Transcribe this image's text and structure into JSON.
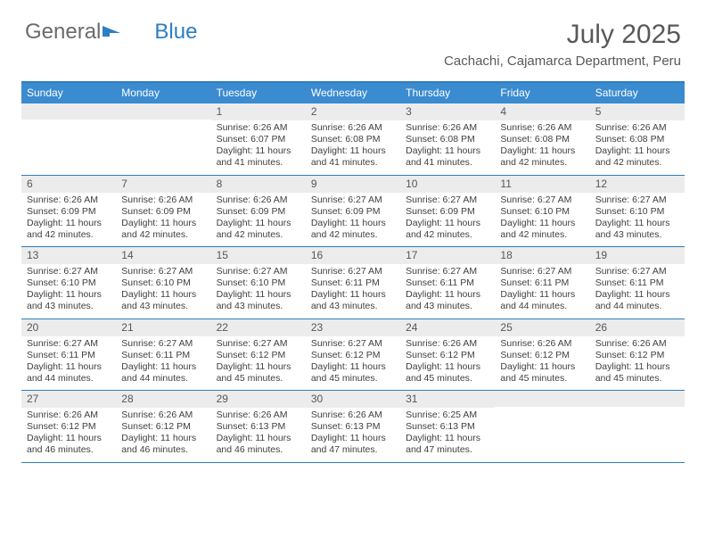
{
  "brand": {
    "part1": "General",
    "part2": "Blue"
  },
  "title": "July 2025",
  "location": "Cachachi, Cajamarca Department, Peru",
  "colors": {
    "header_bg": "#3a8bd0",
    "header_border": "#2f7dbd",
    "text": "#404040",
    "title_text": "#595959",
    "daybar_bg": "#ececec"
  },
  "day_labels": [
    "Sunday",
    "Monday",
    "Tuesday",
    "Wednesday",
    "Thursday",
    "Friday",
    "Saturday"
  ],
  "weeks": [
    [
      {
        "n": "",
        "sunrise": "",
        "sunset": "",
        "daylight": ""
      },
      {
        "n": "",
        "sunrise": "",
        "sunset": "",
        "daylight": ""
      },
      {
        "n": "1",
        "sunrise": "Sunrise: 6:26 AM",
        "sunset": "Sunset: 6:07 PM",
        "daylight": "Daylight: 11 hours and 41 minutes."
      },
      {
        "n": "2",
        "sunrise": "Sunrise: 6:26 AM",
        "sunset": "Sunset: 6:08 PM",
        "daylight": "Daylight: 11 hours and 41 minutes."
      },
      {
        "n": "3",
        "sunrise": "Sunrise: 6:26 AM",
        "sunset": "Sunset: 6:08 PM",
        "daylight": "Daylight: 11 hours and 41 minutes."
      },
      {
        "n": "4",
        "sunrise": "Sunrise: 6:26 AM",
        "sunset": "Sunset: 6:08 PM",
        "daylight": "Daylight: 11 hours and 42 minutes."
      },
      {
        "n": "5",
        "sunrise": "Sunrise: 6:26 AM",
        "sunset": "Sunset: 6:08 PM",
        "daylight": "Daylight: 11 hours and 42 minutes."
      }
    ],
    [
      {
        "n": "6",
        "sunrise": "Sunrise: 6:26 AM",
        "sunset": "Sunset: 6:09 PM",
        "daylight": "Daylight: 11 hours and 42 minutes."
      },
      {
        "n": "7",
        "sunrise": "Sunrise: 6:26 AM",
        "sunset": "Sunset: 6:09 PM",
        "daylight": "Daylight: 11 hours and 42 minutes."
      },
      {
        "n": "8",
        "sunrise": "Sunrise: 6:26 AM",
        "sunset": "Sunset: 6:09 PM",
        "daylight": "Daylight: 11 hours and 42 minutes."
      },
      {
        "n": "9",
        "sunrise": "Sunrise: 6:27 AM",
        "sunset": "Sunset: 6:09 PM",
        "daylight": "Daylight: 11 hours and 42 minutes."
      },
      {
        "n": "10",
        "sunrise": "Sunrise: 6:27 AM",
        "sunset": "Sunset: 6:09 PM",
        "daylight": "Daylight: 11 hours and 42 minutes."
      },
      {
        "n": "11",
        "sunrise": "Sunrise: 6:27 AM",
        "sunset": "Sunset: 6:10 PM",
        "daylight": "Daylight: 11 hours and 42 minutes."
      },
      {
        "n": "12",
        "sunrise": "Sunrise: 6:27 AM",
        "sunset": "Sunset: 6:10 PM",
        "daylight": "Daylight: 11 hours and 43 minutes."
      }
    ],
    [
      {
        "n": "13",
        "sunrise": "Sunrise: 6:27 AM",
        "sunset": "Sunset: 6:10 PM",
        "daylight": "Daylight: 11 hours and 43 minutes."
      },
      {
        "n": "14",
        "sunrise": "Sunrise: 6:27 AM",
        "sunset": "Sunset: 6:10 PM",
        "daylight": "Daylight: 11 hours and 43 minutes."
      },
      {
        "n": "15",
        "sunrise": "Sunrise: 6:27 AM",
        "sunset": "Sunset: 6:10 PM",
        "daylight": "Daylight: 11 hours and 43 minutes."
      },
      {
        "n": "16",
        "sunrise": "Sunrise: 6:27 AM",
        "sunset": "Sunset: 6:11 PM",
        "daylight": "Daylight: 11 hours and 43 minutes."
      },
      {
        "n": "17",
        "sunrise": "Sunrise: 6:27 AM",
        "sunset": "Sunset: 6:11 PM",
        "daylight": "Daylight: 11 hours and 43 minutes."
      },
      {
        "n": "18",
        "sunrise": "Sunrise: 6:27 AM",
        "sunset": "Sunset: 6:11 PM",
        "daylight": "Daylight: 11 hours and 44 minutes."
      },
      {
        "n": "19",
        "sunrise": "Sunrise: 6:27 AM",
        "sunset": "Sunset: 6:11 PM",
        "daylight": "Daylight: 11 hours and 44 minutes."
      }
    ],
    [
      {
        "n": "20",
        "sunrise": "Sunrise: 6:27 AM",
        "sunset": "Sunset: 6:11 PM",
        "daylight": "Daylight: 11 hours and 44 minutes."
      },
      {
        "n": "21",
        "sunrise": "Sunrise: 6:27 AM",
        "sunset": "Sunset: 6:11 PM",
        "daylight": "Daylight: 11 hours and 44 minutes."
      },
      {
        "n": "22",
        "sunrise": "Sunrise: 6:27 AM",
        "sunset": "Sunset: 6:12 PM",
        "daylight": "Daylight: 11 hours and 45 minutes."
      },
      {
        "n": "23",
        "sunrise": "Sunrise: 6:27 AM",
        "sunset": "Sunset: 6:12 PM",
        "daylight": "Daylight: 11 hours and 45 minutes."
      },
      {
        "n": "24",
        "sunrise": "Sunrise: 6:26 AM",
        "sunset": "Sunset: 6:12 PM",
        "daylight": "Daylight: 11 hours and 45 minutes."
      },
      {
        "n": "25",
        "sunrise": "Sunrise: 6:26 AM",
        "sunset": "Sunset: 6:12 PM",
        "daylight": "Daylight: 11 hours and 45 minutes."
      },
      {
        "n": "26",
        "sunrise": "Sunrise: 6:26 AM",
        "sunset": "Sunset: 6:12 PM",
        "daylight": "Daylight: 11 hours and 45 minutes."
      }
    ],
    [
      {
        "n": "27",
        "sunrise": "Sunrise: 6:26 AM",
        "sunset": "Sunset: 6:12 PM",
        "daylight": "Daylight: 11 hours and 46 minutes."
      },
      {
        "n": "28",
        "sunrise": "Sunrise: 6:26 AM",
        "sunset": "Sunset: 6:12 PM",
        "daylight": "Daylight: 11 hours and 46 minutes."
      },
      {
        "n": "29",
        "sunrise": "Sunrise: 6:26 AM",
        "sunset": "Sunset: 6:13 PM",
        "daylight": "Daylight: 11 hours and 46 minutes."
      },
      {
        "n": "30",
        "sunrise": "Sunrise: 6:26 AM",
        "sunset": "Sunset: 6:13 PM",
        "daylight": "Daylight: 11 hours and 47 minutes."
      },
      {
        "n": "31",
        "sunrise": "Sunrise: 6:25 AM",
        "sunset": "Sunset: 6:13 PM",
        "daylight": "Daylight: 11 hours and 47 minutes."
      },
      {
        "n": "",
        "sunrise": "",
        "sunset": "",
        "daylight": ""
      },
      {
        "n": "",
        "sunrise": "",
        "sunset": "",
        "daylight": ""
      }
    ]
  ]
}
